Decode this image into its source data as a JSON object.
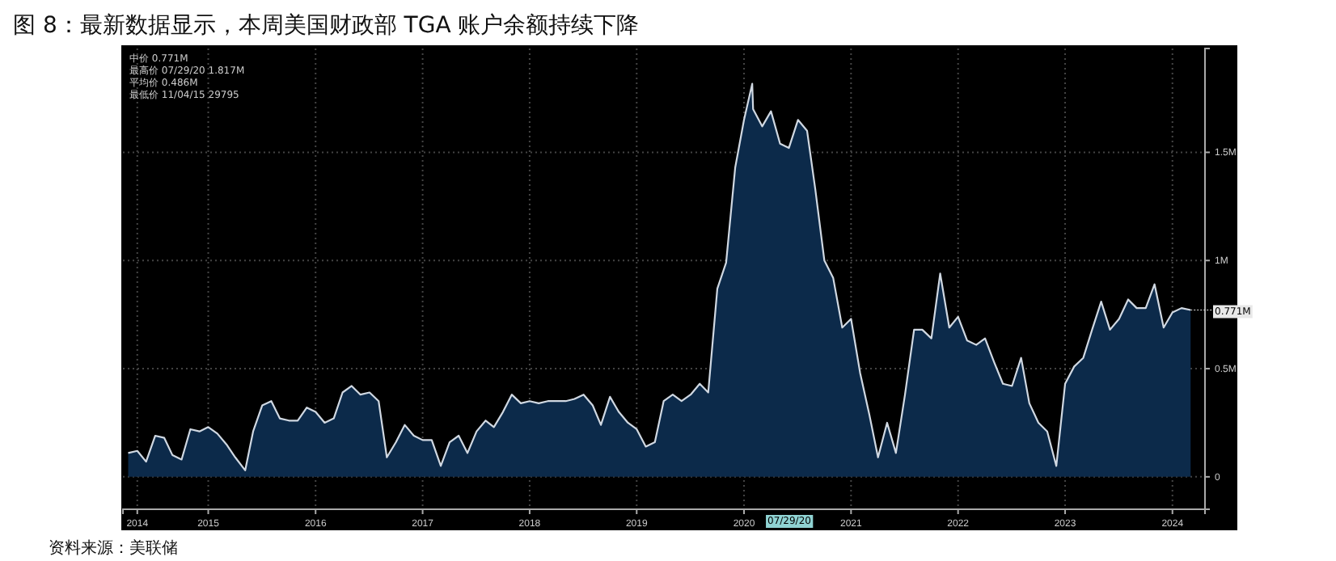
{
  "chart_data": {
    "type": "area",
    "title": "图 8：最新数据显示，本周美国财政部 TGA 账户余额持续下降",
    "color": "#0c2a4a",
    "x": [
      "2014-10",
      "2014-11",
      "2014-12",
      "2015-01",
      "2015-02",
      "2015-03",
      "2015-04",
      "2015-05",
      "2015-06",
      "2015-07",
      "2015-08",
      "2015-09",
      "2015-10",
      "2015-11-04",
      "2015-12",
      "2016-01",
      "2016-02",
      "2016-03",
      "2016-04",
      "2016-05",
      "2016-06",
      "2016-07",
      "2016-08",
      "2016-09",
      "2016-10",
      "2016-11",
      "2016-12",
      "2017-01",
      "2017-02",
      "2017-03",
      "2017-04",
      "2017-05",
      "2017-06",
      "2017-07",
      "2017-08",
      "2017-09",
      "2017-10",
      "2017-11",
      "2017-12",
      "2018-01",
      "2018-02",
      "2018-03",
      "2018-04",
      "2018-05",
      "2018-06",
      "2018-07",
      "2018-08",
      "2018-09",
      "2018-10",
      "2018-11",
      "2018-12",
      "2019-01",
      "2019-02",
      "2019-03",
      "2019-04",
      "2019-05",
      "2019-06",
      "2019-07",
      "2019-08",
      "2019-09",
      "2019-10",
      "2019-11",
      "2019-12",
      "2020-01",
      "2020-02",
      "2020-03",
      "2020-04",
      "2020-05",
      "2020-06",
      "2020-07",
      "2020-07-29",
      "2020-08",
      "2020-09",
      "2020-10",
      "2020-11",
      "2020-12",
      "2021-01",
      "2021-02",
      "2021-03",
      "2021-04",
      "2021-05",
      "2021-06",
      "2021-07",
      "2021-08",
      "2021-09",
      "2021-10",
      "2021-11",
      "2021-12",
      "2022-01",
      "2022-02",
      "2022-03",
      "2022-04",
      "2022-05",
      "2022-06",
      "2022-07",
      "2022-08",
      "2022-09",
      "2022-10",
      "2022-11",
      "2022-12",
      "2023-01",
      "2023-02",
      "2023-03",
      "2023-04",
      "2023-05",
      "2023-06",
      "2023-07",
      "2023-08",
      "2023-09",
      "2023-10",
      "2023-11",
      "2023-12",
      "2024-01",
      "2024-02",
      "2024-03",
      "2024-04",
      "2024-05",
      "2024-06",
      "2024-07",
      "2024-08",
      "2024-09"
    ],
    "values": [
      0.11,
      0.12,
      0.07,
      0.19,
      0.18,
      0.1,
      0.08,
      0.22,
      0.21,
      0.23,
      0.2,
      0.15,
      0.09,
      0.03,
      0.21,
      0.33,
      0.35,
      0.27,
      0.26,
      0.26,
      0.32,
      0.3,
      0.25,
      0.27,
      0.39,
      0.42,
      0.38,
      0.39,
      0.35,
      0.09,
      0.16,
      0.24,
      0.19,
      0.17,
      0.17,
      0.05,
      0.16,
      0.19,
      0.11,
      0.21,
      0.26,
      0.23,
      0.3,
      0.38,
      0.34,
      0.35,
      0.34,
      0.35,
      0.35,
      0.35,
      0.36,
      0.38,
      0.33,
      0.24,
      0.37,
      0.3,
      0.25,
      0.22,
      0.14,
      0.16,
      0.35,
      0.38,
      0.35,
      0.38,
      0.43,
      0.39,
      0.87,
      0.99,
      1.43,
      1.65,
      1.817,
      1.7,
      1.62,
      1.69,
      1.54,
      1.52,
      1.65,
      1.6,
      1.33,
      1.0,
      0.92,
      0.69,
      0.73,
      0.48,
      0.29,
      0.09,
      0.25,
      0.11,
      0.38,
      0.68,
      0.68,
      0.64,
      0.94,
      0.69,
      0.74,
      0.63,
      0.61,
      0.64,
      0.53,
      0.43,
      0.42,
      0.55,
      0.34,
      0.25,
      0.21,
      0.05,
      0.43,
      0.51,
      0.55,
      0.68,
      0.81,
      0.68,
      0.73,
      0.82,
      0.78,
      0.78,
      0.89,
      0.69,
      0.76,
      0.78,
      0.771
    ],
    "xlim": [
      "2014-09-13",
      "2024-10-20"
    ],
    "ylim": [
      -0.15,
      1.98
    ],
    "xticks": [
      {
        "value": "2014-11-01",
        "label": "2014"
      },
      {
        "value": "2015-07-01",
        "label": "2015"
      },
      {
        "value": "2016-07-01",
        "label": "2016"
      },
      {
        "value": "2017-07-01",
        "label": "2017"
      },
      {
        "value": "2018-07-01",
        "label": "2018"
      },
      {
        "value": "2019-07-01",
        "label": "2019"
      },
      {
        "value": "2020-07-01",
        "label": "2020"
      },
      {
        "value": "2021-07-01",
        "label": "2021"
      },
      {
        "value": "2022-07-01",
        "label": "2022"
      },
      {
        "value": "2023-07-01",
        "label": "2023"
      },
      {
        "value": "2024-07-01",
        "label": "2024"
      }
    ],
    "yticks": [
      {
        "value": 0,
        "label": "0"
      },
      {
        "value": 0.5,
        "label": "0.5M"
      },
      {
        "value": 1,
        "label": "1M"
      },
      {
        "value": 1.5,
        "label": "1.5M"
      }
    ],
    "grid": true,
    "annotations": [
      "中价 0.771M",
      "最高价 07/29/20 1.817M",
      "平均价 0.486M",
      "最低价 11/04/15 29795",
      "07/29/20",
      {
        "text": "0.771M",
        "x": "2024-09",
        "y": 0.771
      },
      "资料来源：美联储"
    ]
  }
}
